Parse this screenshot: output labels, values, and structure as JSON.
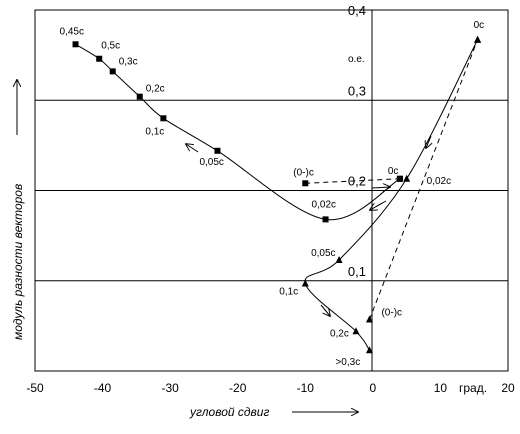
{
  "chart_data": {
    "type": "line",
    "xlabel": "угловой сдвиг",
    "ylabel": "модуль разности векторов",
    "xunit": "град.",
    "yunit": "о.е.",
    "xlim": [
      -50,
      20
    ],
    "ylim": [
      0,
      0.4
    ],
    "xticks": [
      -50,
      -40,
      -30,
      -20,
      -10,
      0,
      10,
      20
    ],
    "xtick_labels": [
      "-50",
      "-40",
      "-30",
      "-20",
      "-10",
      "0",
      "10",
      "20"
    ],
    "yticks": [
      0.1,
      0.2,
      0.3,
      0.4
    ],
    "ytick_labels": [
      "0,1",
      "0,2",
      "0,3",
      "0,4"
    ],
    "grid": "horizontal",
    "series": [
      {
        "marker": "square",
        "line": "solid",
        "points": [
          {
            "x": 4,
            "y": 0.213,
            "label": "0c"
          },
          {
            "x": -7,
            "y": 0.168,
            "label": "0,02c"
          },
          {
            "x": -23,
            "y": 0.244,
            "label": "0,05c"
          },
          {
            "x": -31,
            "y": 0.28,
            "label": "0,1c"
          },
          {
            "x": -34.5,
            "y": 0.304,
            "label": "0,2c"
          },
          {
            "x": -38.5,
            "y": 0.332,
            "label": "0,3c"
          },
          {
            "x": -40.5,
            "y": 0.346,
            "label": "0,5c"
          },
          {
            "x": -44,
            "y": 0.362,
            "label": "0,45c"
          }
        ]
      },
      {
        "marker": "square",
        "line": "dashed",
        "points": [
          {
            "x": -10,
            "y": 0.208,
            "label": "(0-)c"
          },
          {
            "x": 4,
            "y": 0.213,
            "label": ""
          }
        ]
      },
      {
        "marker": "triangle",
        "line": "solid",
        "points": [
          {
            "x": 15.5,
            "y": 0.367,
            "label": "0c"
          },
          {
            "x": 5,
            "y": 0.213,
            "label": "0,02c"
          },
          {
            "x": -5,
            "y": 0.123,
            "label": "0,05c"
          },
          {
            "x": -10,
            "y": 0.097,
            "label": "0,1c"
          },
          {
            "x": -2.5,
            "y": 0.044,
            "label": "0,2c"
          },
          {
            "x": -0.5,
            "y": 0.023,
            "label": ">0,3c"
          }
        ]
      },
      {
        "marker": "triangle",
        "line": "dashed",
        "points": [
          {
            "x": -0.5,
            "y": 0.057,
            "label": "(0-)c"
          },
          {
            "x": 15.5,
            "y": 0.367,
            "label": ""
          }
        ]
      }
    ]
  }
}
